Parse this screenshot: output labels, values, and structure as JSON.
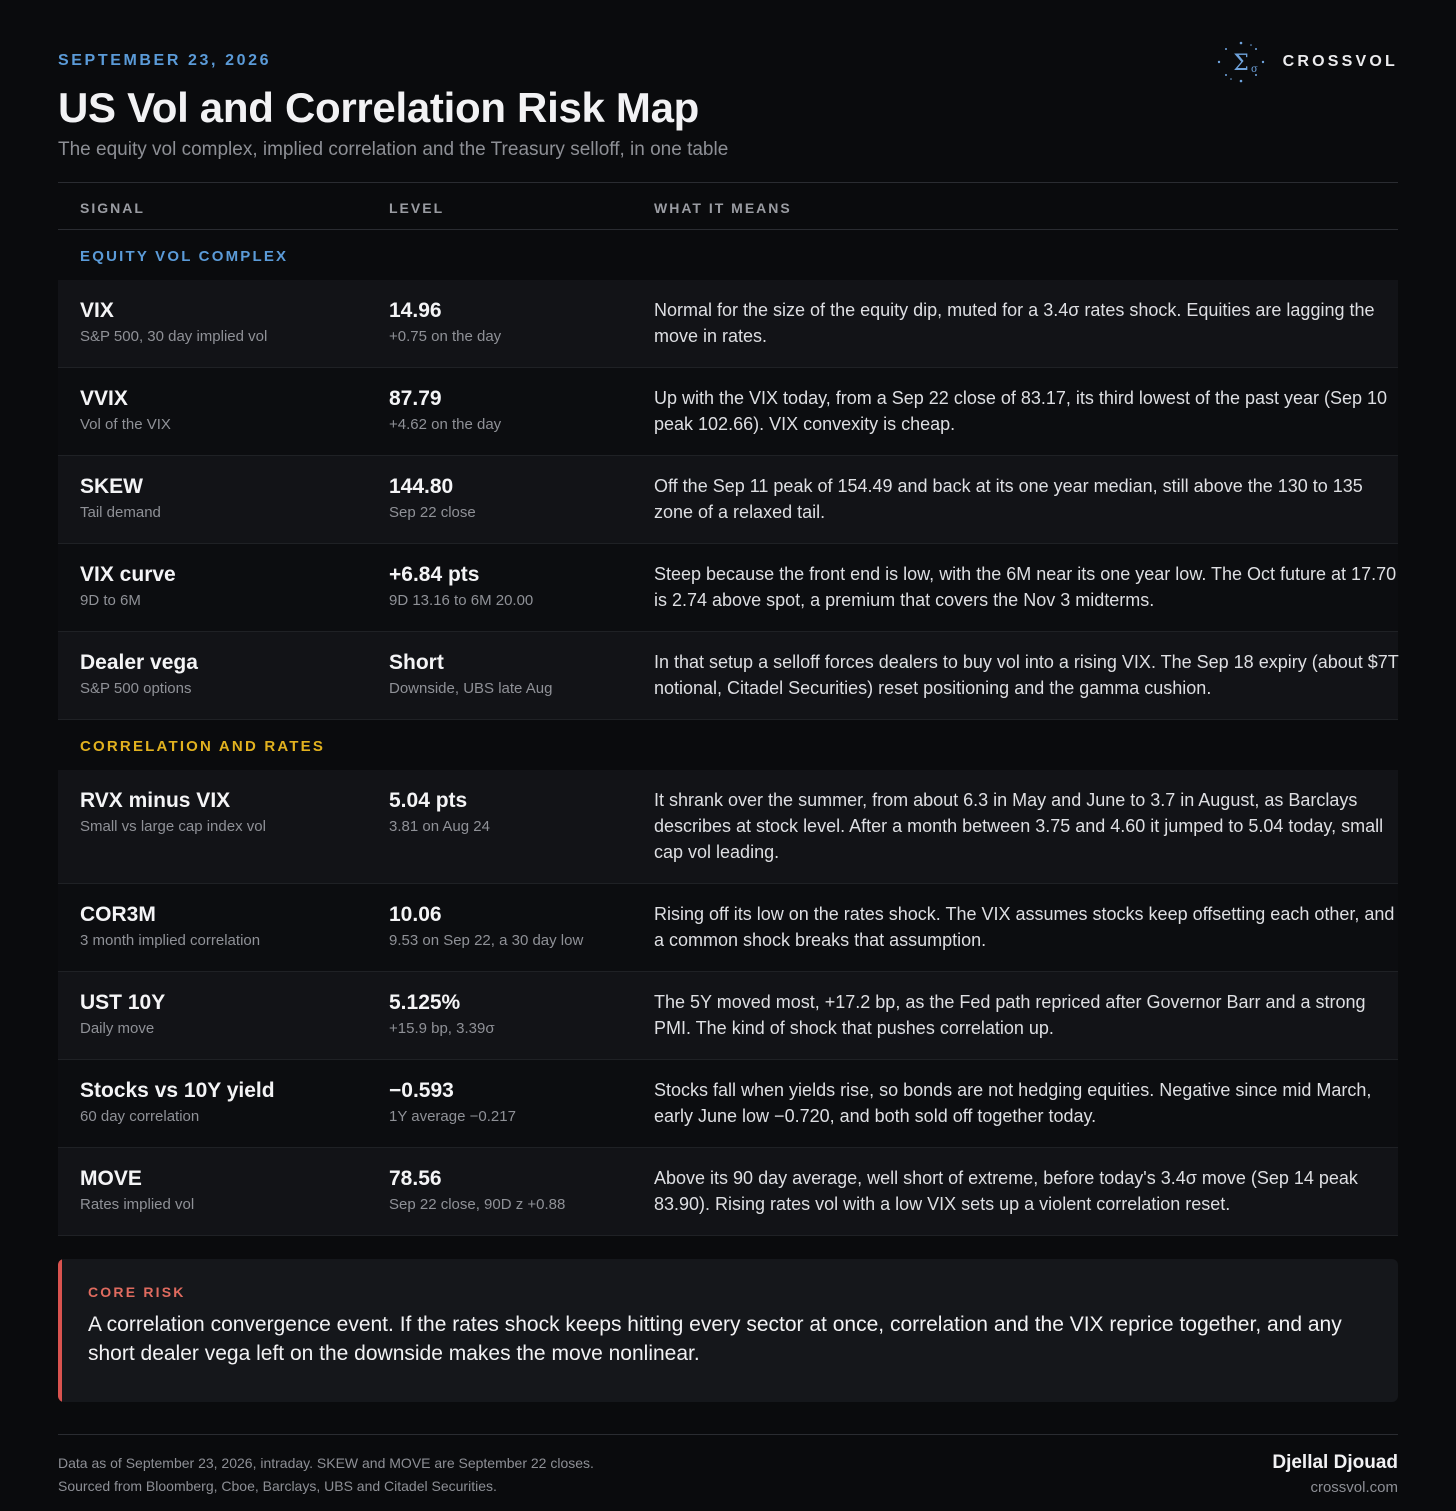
{
  "header": {
    "date": "SEPTEMBER 23, 2026",
    "title": "US Vol and Correlation Risk Map",
    "subtitle": "The equity vol complex, implied correlation and the Treasury selloff, in one table",
    "brand": "CROSSVOL",
    "logo_icon": "sigma-constellation-icon"
  },
  "columns": {
    "signal": "SIGNAL",
    "level": "LEVEL",
    "meaning": "WHAT IT MEANS"
  },
  "sections": [
    {
      "label": "EQUITY VOL COMPLEX",
      "color": "#5b9bd8",
      "rows": [
        {
          "name": "VIX",
          "sub": "S&P 500, 30 day implied vol",
          "level": "14.96",
          "level_sub": "+0.75 on the day",
          "meaning": "Normal for the size of the equity dip, muted for a 3.4σ rates shock. Equities are lagging the move in rates."
        },
        {
          "name": "VVIX",
          "sub": "Vol of the VIX",
          "level": "87.79",
          "level_sub": "+4.62 on the day",
          "meaning": "Up with the VIX today, from a Sep 22 close of 83.17, its third lowest of the past year (Sep 10 peak 102.66). VIX convexity is cheap."
        },
        {
          "name": "SKEW",
          "sub": "Tail demand",
          "level": "144.80",
          "level_sub": "Sep 22 close",
          "meaning": "Off the Sep 11 peak of 154.49 and back at its one year median, still above the 130 to 135 zone of a relaxed tail."
        },
        {
          "name": "VIX curve",
          "sub": "9D to 6M",
          "level": "+6.84 pts",
          "level_sub": "9D 13.16 to 6M 20.00",
          "meaning": "Steep because the front end is low, with the 6M near its one year low. The Oct future at 17.70 is 2.74 above spot, a premium that covers the Nov 3 midterms."
        },
        {
          "name": "Dealer vega",
          "sub": "S&P 500 options",
          "level": "Short",
          "level_sub": "Downside, UBS late Aug",
          "meaning": "In that setup a selloff forces dealers to buy vol into a rising VIX. The Sep 18 expiry (about $7T notional, Citadel Securities) reset positioning and the gamma cushion."
        }
      ]
    },
    {
      "label": "CORRELATION AND RATES",
      "color": "#e2b21f",
      "rows": [
        {
          "name": "RVX minus VIX",
          "sub": "Small vs large cap index vol",
          "level": "5.04 pts",
          "level_sub": "3.81 on Aug 24",
          "meaning": "It shrank over the summer, from about 6.3 in May and June to 3.7 in August, as Barclays describes at stock level. After a month between 3.75 and 4.60 it jumped to 5.04 today, small cap vol leading."
        },
        {
          "name": "COR3M",
          "sub": "3 month implied correlation",
          "level": "10.06",
          "level_sub": "9.53 on Sep 22, a 30 day low",
          "meaning": "Rising off its low on the rates shock. The VIX assumes stocks keep offsetting each other, and a common shock breaks that assumption."
        },
        {
          "name": "UST 10Y",
          "sub": "Daily move",
          "level": "5.125%",
          "level_sub": "+15.9 bp, 3.39σ",
          "meaning": "The 5Y moved most, +17.2 bp, as the Fed path repriced after Governor Barr and a strong PMI. The kind of shock that pushes correlation up."
        },
        {
          "name": "Stocks vs 10Y yield",
          "sub": "60 day correlation",
          "level": "−0.593",
          "level_sub": "1Y average −0.217",
          "meaning": "Stocks fall when yields rise, so bonds are not hedging equities. Negative since mid March, early June low −0.720, and both sold off together today."
        },
        {
          "name": "MOVE",
          "sub": "Rates implied vol",
          "level": "78.56",
          "level_sub": "Sep 22 close, 90D z +0.88",
          "meaning": "Above its 90 day average, well short of extreme, before today's 3.4σ move (Sep 14 peak 83.90). Rising rates vol with a low VIX sets up a violent correlation reset."
        }
      ]
    }
  ],
  "core_risk": {
    "label": "CORE RISK",
    "text": "A correlation convergence event. If the rates shock keeps hitting every sector at once, correlation and the VIX reprice together, and any short dealer vega left on the downside makes the move nonlinear.",
    "color": "#d9534f"
  },
  "footer": {
    "note1": "Data as of September 23, 2026, intraday. SKEW and MOVE are September 22 closes.",
    "note2": "Sourced from Bloomberg, Cboe, Barclays, UBS and Citadel Securities.",
    "author": "Djellal Djouad",
    "site": "crossvol.com"
  }
}
